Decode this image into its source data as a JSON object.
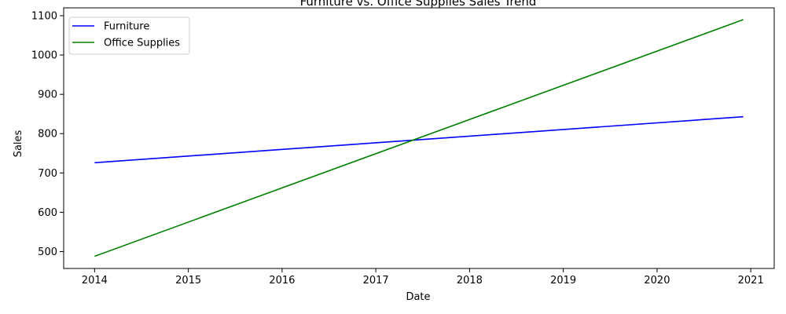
{
  "chart_data": {
    "type": "line",
    "title": "Furniture vs. Office Supplies Sales Trend",
    "xlabel": "Date",
    "ylabel": "Sales",
    "x_ticks": [
      "2014",
      "2015",
      "2016",
      "2017",
      "2018",
      "2019",
      "2020",
      "2021"
    ],
    "y_ticks": [
      "500",
      "600",
      "700",
      "800",
      "900",
      "1000",
      "1100"
    ],
    "xlim": [
      2013.67,
      2021.25
    ],
    "ylim": [
      457,
      1120
    ],
    "grid": false,
    "legend_position": "upper-left",
    "series": [
      {
        "name": "Furniture",
        "color": "#0000ff",
        "x": [
          2014.0,
          2020.92
        ],
        "y": [
          726,
          843
        ]
      },
      {
        "name": "Office Supplies",
        "color": "#008000",
        "x": [
          2014.0,
          2020.92
        ],
        "y": [
          488,
          1090
        ]
      }
    ]
  }
}
